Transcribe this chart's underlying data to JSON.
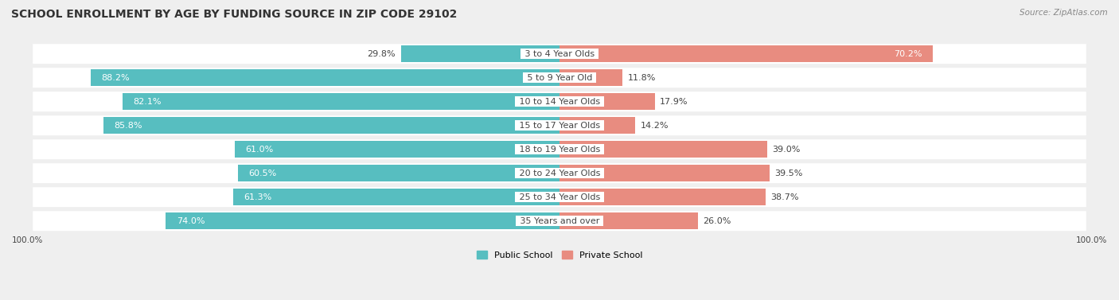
{
  "title": "SCHOOL ENROLLMENT BY AGE BY FUNDING SOURCE IN ZIP CODE 29102",
  "source": "Source: ZipAtlas.com",
  "categories": [
    "3 to 4 Year Olds",
    "5 to 9 Year Old",
    "10 to 14 Year Olds",
    "15 to 17 Year Olds",
    "18 to 19 Year Olds",
    "20 to 24 Year Olds",
    "25 to 34 Year Olds",
    "35 Years and over"
  ],
  "public_values": [
    29.8,
    88.2,
    82.1,
    85.8,
    61.0,
    60.5,
    61.3,
    74.0
  ],
  "private_values": [
    70.2,
    11.8,
    17.9,
    14.2,
    39.0,
    39.5,
    38.7,
    26.0
  ],
  "public_color": "#57bec0",
  "private_color": "#e88c80",
  "bg_color": "#efefef",
  "row_color": "#ffffff",
  "row_alt_color": "#f7f7f7",
  "text_dark": "#444444",
  "text_white": "#ffffff",
  "title_fontsize": 10,
  "bar_fontsize": 8,
  "cat_fontsize": 8,
  "legend_fontsize": 8,
  "source_fontsize": 7.5
}
